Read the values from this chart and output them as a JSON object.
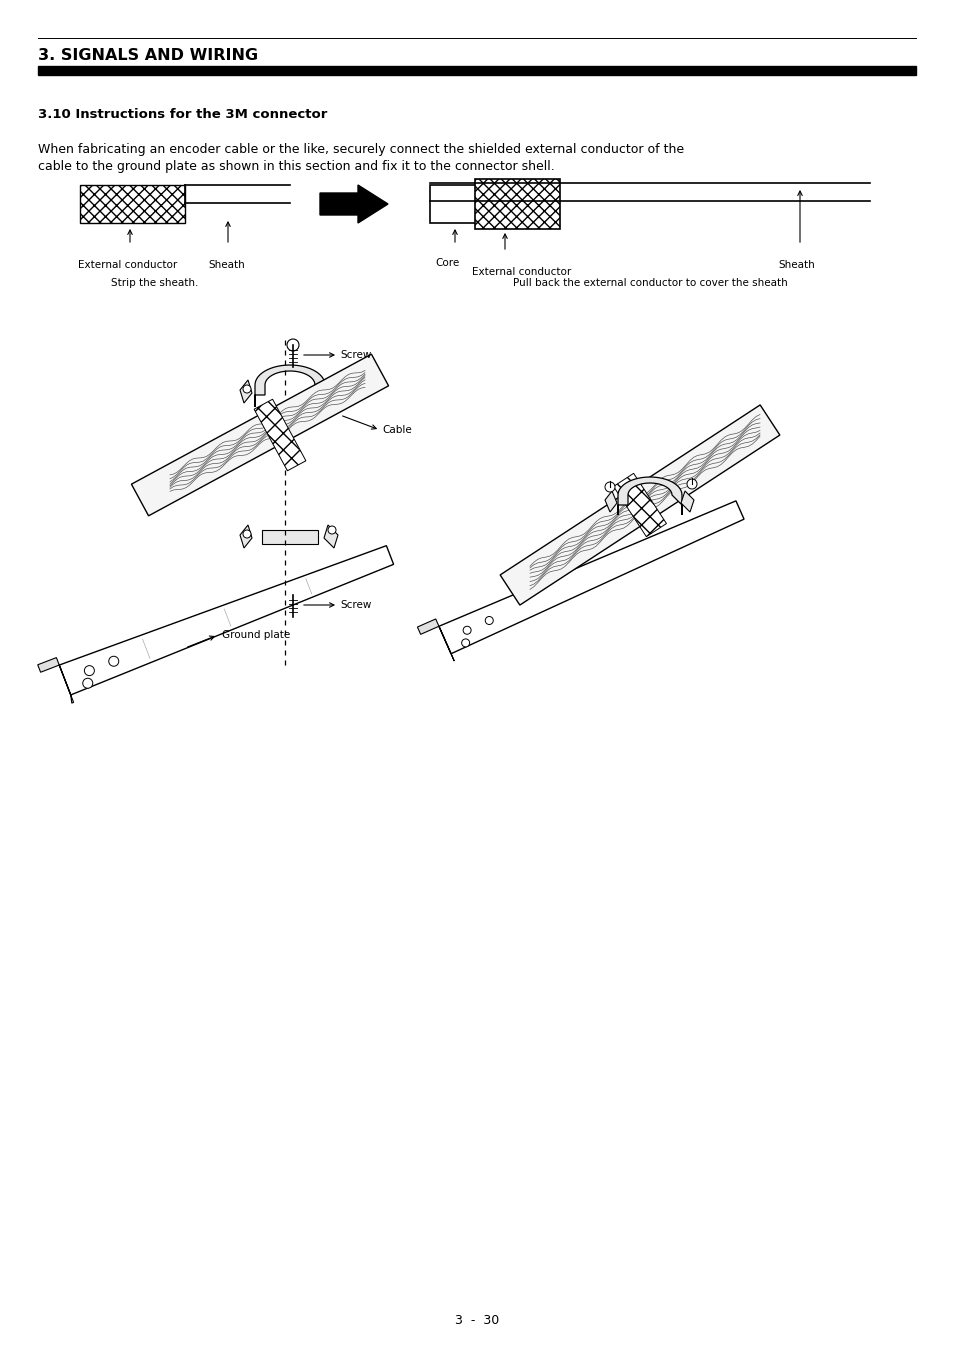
{
  "page_bg": "#ffffff",
  "header_title": "3. SIGNALS AND WIRING",
  "header_bar_color": "#000000",
  "section_title": "3.10 Instructions for the 3M connector",
  "body_line1": "When fabricating an encoder cable or the like, securely connect the shielded external conductor of the",
  "body_line2": "cable to the ground plate as shown in this section and fix it to the connector shell.",
  "footer_text": "3  -  30",
  "diagram_caption_left": "Strip the sheath.",
  "diagram_caption_right": "Pull back the external conductor to cover the sheath",
  "label_ext_cond": "External conductor",
  "label_sheath_left": "Sheath",
  "label_core": "Core",
  "label_ext_cond_right": "External conductor",
  "label_sheath_right": "Sheath",
  "label_screw_top": "Screw",
  "label_cable": "Cable",
  "label_screw_bottom": "Screw",
  "label_ground_plate": "Ground plate",
  "text_color": "#000000",
  "font_size_header": 11.5,
  "font_size_section": 9.5,
  "font_size_body": 9.0,
  "font_size_label": 7.5,
  "font_size_footer": 9.0
}
